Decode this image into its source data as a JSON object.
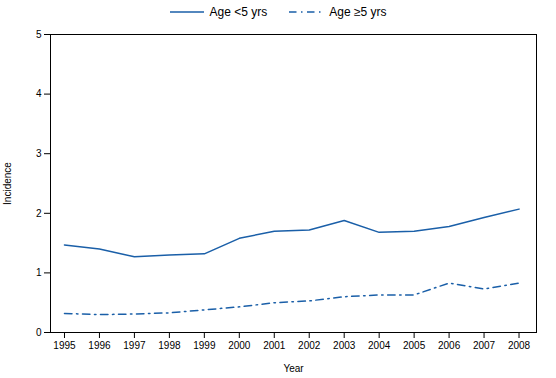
{
  "chart_data": {
    "type": "line",
    "x": [
      1995,
      1996,
      1997,
      1998,
      1999,
      2000,
      2001,
      2002,
      2003,
      2004,
      2005,
      2006,
      2007,
      2008
    ],
    "series": [
      {
        "name": "Age <5 yrs",
        "color": "#1a5fa8",
        "line_style": "solid",
        "values": [
          1.47,
          1.4,
          1.27,
          1.3,
          1.32,
          1.58,
          1.7,
          1.72,
          1.88,
          1.68,
          1.7,
          1.78,
          1.93,
          2.07
        ]
      },
      {
        "name": "Age ≥5 yrs",
        "color": "#1a5fa8",
        "line_style": "dashdot",
        "values": [
          0.32,
          0.3,
          0.31,
          0.33,
          0.38,
          0.43,
          0.5,
          0.53,
          0.6,
          0.63,
          0.63,
          0.83,
          0.73,
          0.83
        ]
      }
    ],
    "xlabel": "Year",
    "ylabel": "Incidence",
    "xlim": [
      1994.6,
      2008.5
    ],
    "xticks": [
      1995,
      1996,
      1997,
      1998,
      1999,
      2000,
      2001,
      2002,
      2003,
      2004,
      2005,
      2006,
      2007,
      2008
    ],
    "ylim": [
      0,
      5
    ],
    "yticks": [
      0,
      1,
      2,
      3,
      4,
      5
    ],
    "grid": false,
    "legend": "top"
  }
}
